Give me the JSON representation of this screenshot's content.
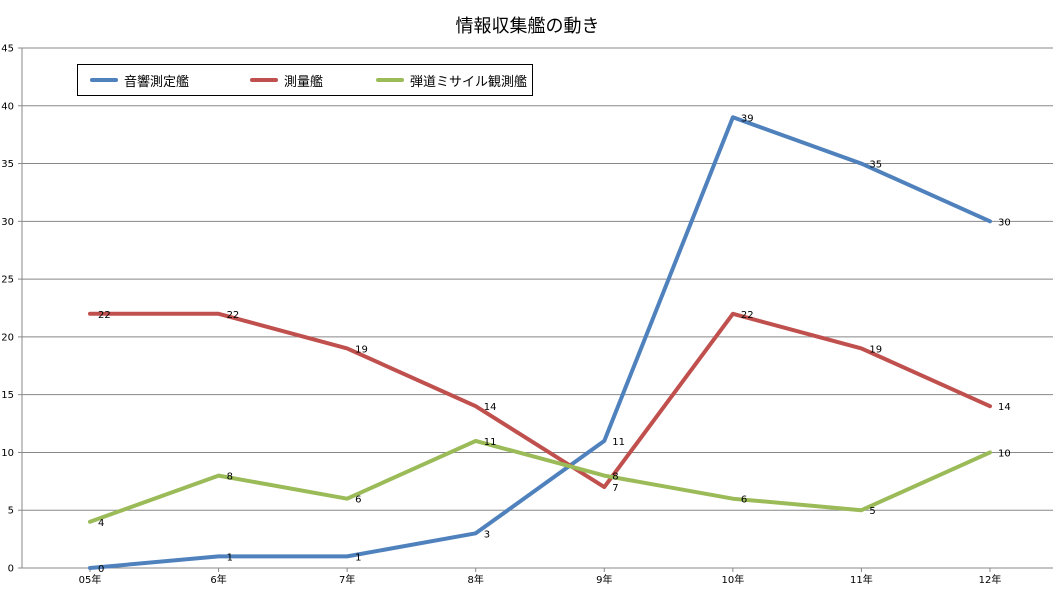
{
  "chart_data": {
    "type": "line",
    "title": "情報収集艦の動き",
    "categories": [
      "05年",
      "6年",
      "7年",
      "8年",
      "9年",
      "10年",
      "11年",
      "12年"
    ],
    "ylim": [
      0,
      45
    ],
    "yticks": [
      0,
      5,
      10,
      15,
      20,
      25,
      30,
      35,
      40,
      45
    ],
    "grid": "horizontal",
    "legend_position": "top-left",
    "series": [
      {
        "name": "音響測定艦",
        "color": "#4f81bd",
        "values": [
          0,
          1,
          1,
          3,
          11,
          39,
          35,
          30
        ]
      },
      {
        "name": "測量艦",
        "color": "#c0504d",
        "values": [
          22,
          22,
          19,
          14,
          7,
          22,
          19,
          14
        ]
      },
      {
        "name": "弾道ミサイル観測艦",
        "color": "#9bbb59",
        "values": [
          4,
          8,
          6,
          11,
          8,
          6,
          5,
          10
        ]
      }
    ]
  }
}
